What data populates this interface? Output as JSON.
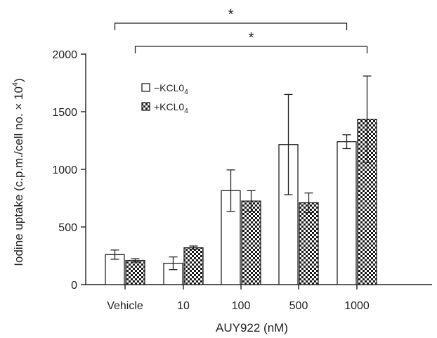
{
  "chart_data": {
    "type": "bar",
    "categories": [
      "Vehicle",
      "10",
      "100",
      "500",
      "1000"
    ],
    "series": [
      {
        "name": "−KCL0",
        "name_sub": "4",
        "pattern": "open",
        "values": [
          260,
          185,
          815,
          1215,
          1240
        ],
        "errors": [
          40,
          55,
          180,
          435,
          60
        ]
      },
      {
        "name": "+KCL0",
        "name_sub": "4",
        "pattern": "checkered",
        "values": [
          210,
          320,
          725,
          710,
          1435
        ],
        "errors": [
          15,
          15,
          90,
          85,
          375
        ]
      }
    ],
    "xlabel": "AUY922 (nM)",
    "ylabel": "Iodine uptake (c.p.m./cell no. × 10",
    "ylabel_sup": "4",
    "ylabel_close": ")",
    "ylim": [
      0,
      2000
    ],
    "yticks": [
      0,
      500,
      1000,
      1500,
      2000
    ],
    "grid": false,
    "legend_position": "upper-left",
    "significance": [
      {
        "from_category": "Vehicle",
        "to_category": "1000",
        "label": "*",
        "level": 2
      },
      {
        "from_category": "Vehicle",
        "to_category": "1000",
        "label": "*",
        "level": 1
      }
    ]
  }
}
